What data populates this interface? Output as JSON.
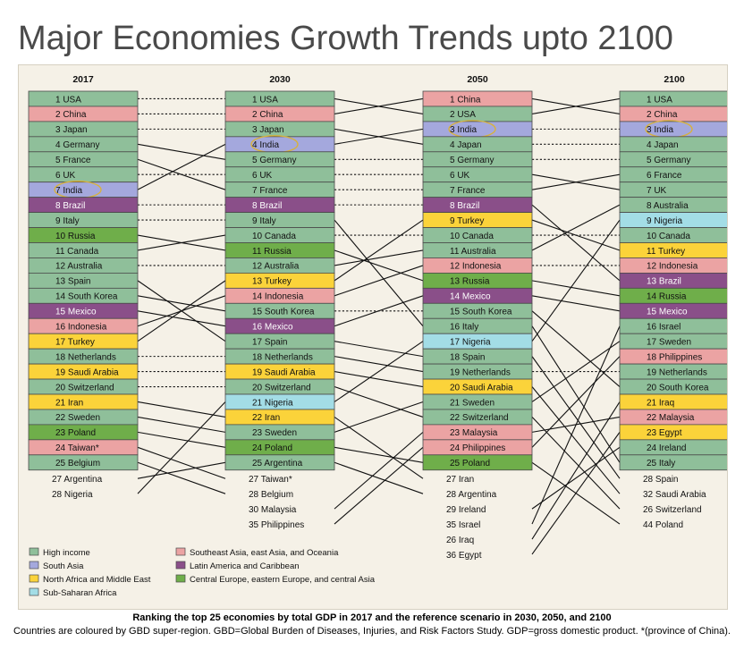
{
  "title": "Major Economies Growth Trends upto 2100",
  "caption": {
    "line1": "Ranking the top 25 economies by total GDP in 2017 and the reference scenario in 2030, 2050, and 2100",
    "line2": "Countries are coloured by GBD super-region. GBD=Global Burden of Diseases, Injuries, and Risk Factors Study. GDP=gross domestic product. *(province of China)."
  },
  "colors": {
    "High income": "#8fbf9a",
    "South Asia": "#a4a8dd",
    "North Africa and Middle East": "#fbd33a",
    "Sub-Saharan Africa": "#a3dde6",
    "Southeast Asia, east Asia, and Oceania": "#eba3a3",
    "Latin America and Caribbean": "#8a4f89",
    "Central Europe, eastern Europe, and central Asia": "#6fae4a"
  },
  "chart_data": {
    "type": "table",
    "description_note": "",
    "columns": [
      {
        "year": "2017",
        "ranked": [
          {
            "rank": 1,
            "country": "USA",
            "region": "High income"
          },
          {
            "rank": 2,
            "country": "China",
            "region": "Southeast Asia, east Asia, and Oceania"
          },
          {
            "rank": 3,
            "country": "Japan",
            "region": "High income"
          },
          {
            "rank": 4,
            "country": "Germany",
            "region": "High income"
          },
          {
            "rank": 5,
            "country": "France",
            "region": "High income"
          },
          {
            "rank": 6,
            "country": "UK",
            "region": "High income"
          },
          {
            "rank": 7,
            "country": "India",
            "region": "South Asia",
            "highlight": true
          },
          {
            "rank": 8,
            "country": "Brazil",
            "region": "Latin America and Caribbean"
          },
          {
            "rank": 9,
            "country": "Italy",
            "region": "High income"
          },
          {
            "rank": 10,
            "country": "Russia",
            "region": "Central Europe, eastern Europe, and central Asia"
          },
          {
            "rank": 11,
            "country": "Canada",
            "region": "High income"
          },
          {
            "rank": 12,
            "country": "Australia",
            "region": "High income"
          },
          {
            "rank": 13,
            "country": "Spain",
            "region": "High income"
          },
          {
            "rank": 14,
            "country": "South Korea",
            "region": "High income"
          },
          {
            "rank": 15,
            "country": "Mexico",
            "region": "Latin America and Caribbean"
          },
          {
            "rank": 16,
            "country": "Indonesia",
            "region": "Southeast Asia, east Asia, and Oceania"
          },
          {
            "rank": 17,
            "country": "Turkey",
            "region": "North Africa and Middle East"
          },
          {
            "rank": 18,
            "country": "Netherlands",
            "region": "High income"
          },
          {
            "rank": 19,
            "country": "Saudi Arabia",
            "region": "North Africa and Middle East"
          },
          {
            "rank": 20,
            "country": "Switzerland",
            "region": "High income"
          },
          {
            "rank": 21,
            "country": "Iran",
            "region": "North Africa and Middle East"
          },
          {
            "rank": 22,
            "country": "Sweden",
            "region": "High income"
          },
          {
            "rank": 23,
            "country": "Poland",
            "region": "Central Europe, eastern Europe, and central Asia"
          },
          {
            "rank": 24,
            "country": "Taiwan*",
            "region": "Southeast Asia, east Asia, and Oceania"
          },
          {
            "rank": 25,
            "country": "Belgium",
            "region": "High income"
          }
        ],
        "others": [
          {
            "rank": 27,
            "country": "Argentina"
          },
          {
            "rank": 28,
            "country": "Nigeria"
          }
        ]
      },
      {
        "year": "2030",
        "ranked": [
          {
            "rank": 1,
            "country": "USA",
            "region": "High income"
          },
          {
            "rank": 2,
            "country": "China",
            "region": "Southeast Asia, east Asia, and Oceania"
          },
          {
            "rank": 3,
            "country": "Japan",
            "region": "High income"
          },
          {
            "rank": 4,
            "country": "India",
            "region": "South Asia",
            "highlight": true
          },
          {
            "rank": 5,
            "country": "Germany",
            "region": "High income"
          },
          {
            "rank": 6,
            "country": "UK",
            "region": "High income"
          },
          {
            "rank": 7,
            "country": "France",
            "region": "High income"
          },
          {
            "rank": 8,
            "country": "Brazil",
            "region": "Latin America and Caribbean"
          },
          {
            "rank": 9,
            "country": "Italy",
            "region": "High income"
          },
          {
            "rank": 10,
            "country": "Canada",
            "region": "High income"
          },
          {
            "rank": 11,
            "country": "Russia",
            "region": "Central Europe, eastern Europe, and central Asia"
          },
          {
            "rank": 12,
            "country": "Australia",
            "region": "High income"
          },
          {
            "rank": 13,
            "country": "Turkey",
            "region": "North Africa and Middle East"
          },
          {
            "rank": 14,
            "country": "Indonesia",
            "region": "Southeast Asia, east Asia, and Oceania"
          },
          {
            "rank": 15,
            "country": "South Korea",
            "region": "High income"
          },
          {
            "rank": 16,
            "country": "Mexico",
            "region": "Latin America and Caribbean"
          },
          {
            "rank": 17,
            "country": "Spain",
            "region": "High income"
          },
          {
            "rank": 18,
            "country": "Netherlands",
            "region": "High income"
          },
          {
            "rank": 19,
            "country": "Saudi Arabia",
            "region": "North Africa and Middle East"
          },
          {
            "rank": 20,
            "country": "Switzerland",
            "region": "High income"
          },
          {
            "rank": 21,
            "country": "Nigeria",
            "region": "Sub-Saharan Africa"
          },
          {
            "rank": 22,
            "country": "Iran",
            "region": "North Africa and Middle East"
          },
          {
            "rank": 23,
            "country": "Sweden",
            "region": "High income"
          },
          {
            "rank": 24,
            "country": "Poland",
            "region": "Central Europe, eastern Europe, and central Asia"
          },
          {
            "rank": 25,
            "country": "Argentina",
            "region": "High income"
          }
        ],
        "others": [
          {
            "rank": 27,
            "country": "Taiwan*"
          },
          {
            "rank": 28,
            "country": "Belgium"
          },
          {
            "rank": 30,
            "country": "Malaysia"
          },
          {
            "rank": 35,
            "country": "Philippines"
          }
        ]
      },
      {
        "year": "2050",
        "ranked": [
          {
            "rank": 1,
            "country": "China",
            "region": "Southeast Asia, east Asia, and Oceania"
          },
          {
            "rank": 2,
            "country": "USA",
            "region": "High income"
          },
          {
            "rank": 3,
            "country": "India",
            "region": "South Asia",
            "highlight": true
          },
          {
            "rank": 4,
            "country": "Japan",
            "region": "High income"
          },
          {
            "rank": 5,
            "country": "Germany",
            "region": "High income"
          },
          {
            "rank": 6,
            "country": "UK",
            "region": "High income"
          },
          {
            "rank": 7,
            "country": "France",
            "region": "High income"
          },
          {
            "rank": 8,
            "country": "Brazil",
            "region": "Latin America and Caribbean"
          },
          {
            "rank": 9,
            "country": "Turkey",
            "region": "North Africa and Middle East"
          },
          {
            "rank": 10,
            "country": "Canada",
            "region": "High income"
          },
          {
            "rank": 11,
            "country": "Australia",
            "region": "High income"
          },
          {
            "rank": 12,
            "country": "Indonesia",
            "region": "Southeast Asia, east Asia, and Oceania"
          },
          {
            "rank": 13,
            "country": "Russia",
            "region": "Central Europe, eastern Europe, and central Asia"
          },
          {
            "rank": 14,
            "country": "Mexico",
            "region": "Latin America and Caribbean"
          },
          {
            "rank": 15,
            "country": "South Korea",
            "region": "High income"
          },
          {
            "rank": 16,
            "country": "Italy",
            "region": "High income"
          },
          {
            "rank": 17,
            "country": "Nigeria",
            "region": "Sub-Saharan Africa"
          },
          {
            "rank": 18,
            "country": "Spain",
            "region": "High income"
          },
          {
            "rank": 19,
            "country": "Netherlands",
            "region": "High income"
          },
          {
            "rank": 20,
            "country": "Saudi Arabia",
            "region": "North Africa and Middle East"
          },
          {
            "rank": 21,
            "country": "Sweden",
            "region": "High income"
          },
          {
            "rank": 22,
            "country": "Switzerland",
            "region": "High income"
          },
          {
            "rank": 23,
            "country": "Malaysia",
            "region": "Southeast Asia, east Asia, and Oceania"
          },
          {
            "rank": 24,
            "country": "Philippines",
            "region": "Southeast Asia, east Asia, and Oceania"
          },
          {
            "rank": 25,
            "country": "Poland",
            "region": "Central Europe, eastern Europe, and central Asia"
          }
        ],
        "others": [
          {
            "rank": 27,
            "country": "Iran"
          },
          {
            "rank": 28,
            "country": "Argentina"
          },
          {
            "rank": 29,
            "country": "Ireland"
          },
          {
            "rank": 35,
            "country": "Israel"
          },
          {
            "rank": 26,
            "country": "Iraq"
          },
          {
            "rank": 36,
            "country": "Egypt"
          }
        ]
      },
      {
        "year": "2100",
        "ranked": [
          {
            "rank": 1,
            "country": "USA",
            "region": "High income"
          },
          {
            "rank": 2,
            "country": "China",
            "region": "Southeast Asia, east Asia, and Oceania"
          },
          {
            "rank": 3,
            "country": "India",
            "region": "South Asia",
            "highlight": true
          },
          {
            "rank": 4,
            "country": "Japan",
            "region": "High income"
          },
          {
            "rank": 5,
            "country": "Germany",
            "region": "High income"
          },
          {
            "rank": 6,
            "country": "France",
            "region": "High income"
          },
          {
            "rank": 7,
            "country": "UK",
            "region": "High income"
          },
          {
            "rank": 8,
            "country": "Australia",
            "region": "High income"
          },
          {
            "rank": 9,
            "country": "Nigeria",
            "region": "Sub-Saharan Africa"
          },
          {
            "rank": 10,
            "country": "Canada",
            "region": "High income"
          },
          {
            "rank": 11,
            "country": "Turkey",
            "region": "North Africa and Middle East"
          },
          {
            "rank": 12,
            "country": "Indonesia",
            "region": "Southeast Asia, east Asia, and Oceania"
          },
          {
            "rank": 13,
            "country": "Brazil",
            "region": "Latin America and Caribbean"
          },
          {
            "rank": 14,
            "country": "Russia",
            "region": "Central Europe, eastern Europe, and central Asia"
          },
          {
            "rank": 15,
            "country": "Mexico",
            "region": "Latin America and Caribbean"
          },
          {
            "rank": 16,
            "country": "Israel",
            "region": "High income"
          },
          {
            "rank": 17,
            "country": "Sweden",
            "region": "High income"
          },
          {
            "rank": 18,
            "country": "Philippines",
            "region": "Southeast Asia, east Asia, and Oceania"
          },
          {
            "rank": 19,
            "country": "Netherlands",
            "region": "High income"
          },
          {
            "rank": 20,
            "country": "South Korea",
            "region": "High income"
          },
          {
            "rank": 21,
            "country": "Iraq",
            "region": "North Africa and Middle East"
          },
          {
            "rank": 22,
            "country": "Malaysia",
            "region": "Southeast Asia, east Asia, and Oceania"
          },
          {
            "rank": 23,
            "country": "Egypt",
            "region": "North Africa and Middle East"
          },
          {
            "rank": 24,
            "country": "Ireland",
            "region": "High income"
          },
          {
            "rank": 25,
            "country": "Italy",
            "region": "High income"
          }
        ],
        "others": [
          {
            "rank": 28,
            "country": "Spain"
          },
          {
            "rank": 32,
            "country": "Saudi Arabia"
          },
          {
            "rank": 26,
            "country": "Switzerland"
          },
          {
            "rank": 44,
            "country": "Poland"
          }
        ]
      }
    ],
    "legend": [
      {
        "label": "High income"
      },
      {
        "label": "South Asia"
      },
      {
        "label": "North Africa and Middle East"
      },
      {
        "label": "Sub-Saharan Africa"
      },
      {
        "label": "Southeast Asia, east Asia, and Oceania"
      },
      {
        "label": "Latin America and Caribbean"
      },
      {
        "label": "Central Europe, eastern Europe, and central Asia"
      }
    ]
  }
}
